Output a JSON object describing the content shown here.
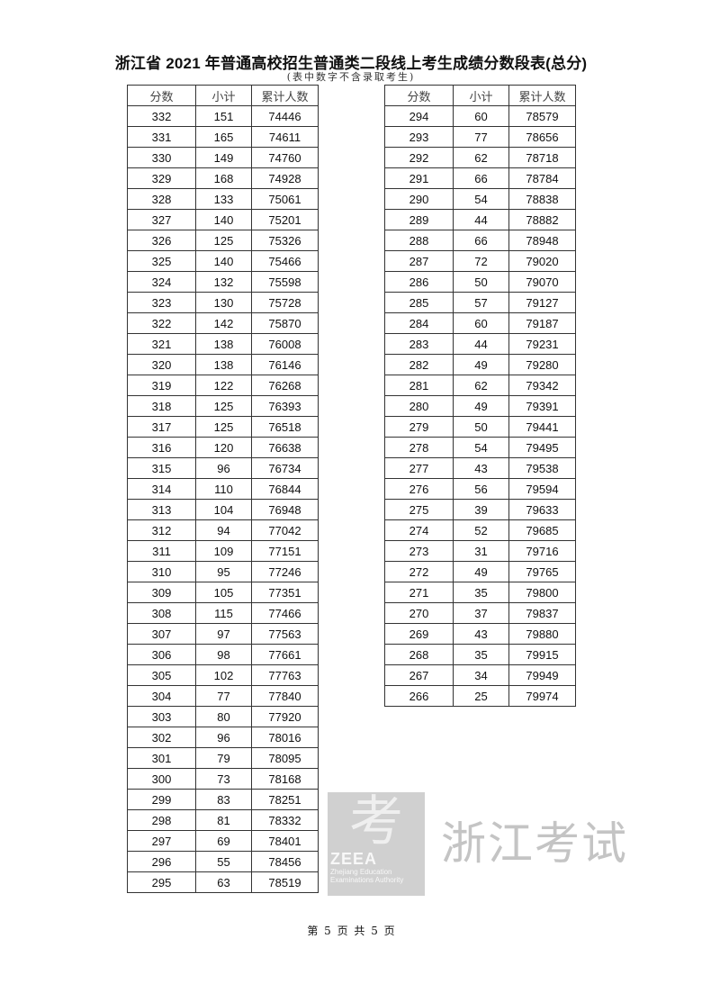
{
  "title": "浙江省 2021 年普通高校招生普通类二段线上考生成绩分数段表(总分)",
  "subtitle": "(表中数字不含录取考生)",
  "columns": [
    "分数",
    "小计",
    "累计人数"
  ],
  "left_rows": [
    [
      "332",
      "151",
      "74446"
    ],
    [
      "331",
      "165",
      "74611"
    ],
    [
      "330",
      "149",
      "74760"
    ],
    [
      "329",
      "168",
      "74928"
    ],
    [
      "328",
      "133",
      "75061"
    ],
    [
      "327",
      "140",
      "75201"
    ],
    [
      "326",
      "125",
      "75326"
    ],
    [
      "325",
      "140",
      "75466"
    ],
    [
      "324",
      "132",
      "75598"
    ],
    [
      "323",
      "130",
      "75728"
    ],
    [
      "322",
      "142",
      "75870"
    ],
    [
      "321",
      "138",
      "76008"
    ],
    [
      "320",
      "138",
      "76146"
    ],
    [
      "319",
      "122",
      "76268"
    ],
    [
      "318",
      "125",
      "76393"
    ],
    [
      "317",
      "125",
      "76518"
    ],
    [
      "316",
      "120",
      "76638"
    ],
    [
      "315",
      "96",
      "76734"
    ],
    [
      "314",
      "110",
      "76844"
    ],
    [
      "313",
      "104",
      "76948"
    ],
    [
      "312",
      "94",
      "77042"
    ],
    [
      "311",
      "109",
      "77151"
    ],
    [
      "310",
      "95",
      "77246"
    ],
    [
      "309",
      "105",
      "77351"
    ],
    [
      "308",
      "115",
      "77466"
    ],
    [
      "307",
      "97",
      "77563"
    ],
    [
      "306",
      "98",
      "77661"
    ],
    [
      "305",
      "102",
      "77763"
    ],
    [
      "304",
      "77",
      "77840"
    ],
    [
      "303",
      "80",
      "77920"
    ],
    [
      "302",
      "96",
      "78016"
    ],
    [
      "301",
      "79",
      "78095"
    ],
    [
      "300",
      "73",
      "78168"
    ],
    [
      "299",
      "83",
      "78251"
    ],
    [
      "298",
      "81",
      "78332"
    ],
    [
      "297",
      "69",
      "78401"
    ],
    [
      "296",
      "55",
      "78456"
    ],
    [
      "295",
      "63",
      "78519"
    ]
  ],
  "right_rows": [
    [
      "294",
      "60",
      "78579"
    ],
    [
      "293",
      "77",
      "78656"
    ],
    [
      "292",
      "62",
      "78718"
    ],
    [
      "291",
      "66",
      "78784"
    ],
    [
      "290",
      "54",
      "78838"
    ],
    [
      "289",
      "44",
      "78882"
    ],
    [
      "288",
      "66",
      "78948"
    ],
    [
      "287",
      "72",
      "79020"
    ],
    [
      "286",
      "50",
      "79070"
    ],
    [
      "285",
      "57",
      "79127"
    ],
    [
      "284",
      "60",
      "79187"
    ],
    [
      "283",
      "44",
      "79231"
    ],
    [
      "282",
      "49",
      "79280"
    ],
    [
      "281",
      "62",
      "79342"
    ],
    [
      "280",
      "49",
      "79391"
    ],
    [
      "279",
      "50",
      "79441"
    ],
    [
      "278",
      "54",
      "79495"
    ],
    [
      "277",
      "43",
      "79538"
    ],
    [
      "276",
      "56",
      "79594"
    ],
    [
      "275",
      "39",
      "79633"
    ],
    [
      "274",
      "52",
      "79685"
    ],
    [
      "273",
      "31",
      "79716"
    ],
    [
      "272",
      "49",
      "79765"
    ],
    [
      "271",
      "35",
      "79800"
    ],
    [
      "270",
      "37",
      "79837"
    ],
    [
      "269",
      "43",
      "79880"
    ],
    [
      "268",
      "35",
      "79915"
    ],
    [
      "267",
      "34",
      "79949"
    ],
    [
      "266",
      "25",
      "79974"
    ]
  ],
  "watermark": {
    "logo_char": "考",
    "logo_abbr": "ZEEA",
    "logo_sub": "Zhejiang Education Examinations Authority",
    "text": "浙江考试"
  },
  "footer": "第 5 页 共 5 页"
}
